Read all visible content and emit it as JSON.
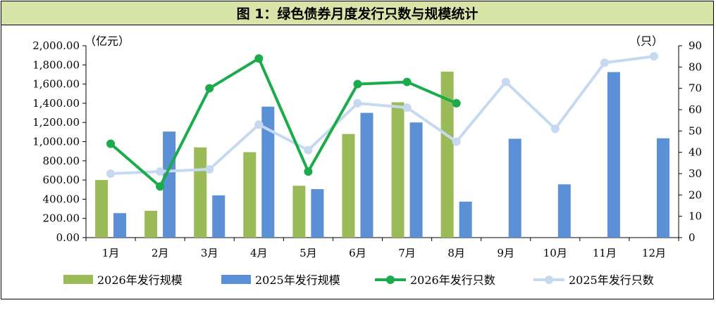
{
  "title": "图 1：绿色债券月度发行只数与规模统计",
  "chart_data": {
    "type": "bar",
    "categories": [
      "1月",
      "2月",
      "3月",
      "4月",
      "5月",
      "6月",
      "7月",
      "8月",
      "9月",
      "10月",
      "11月",
      "12月"
    ],
    "left_unit": "（亿元）",
    "right_unit": "（只）",
    "left_ticks": [
      "0.00",
      "200.00",
      "400.00",
      "600.00",
      "800.00",
      "1,000.00",
      "1,200.00",
      "1,400.00",
      "1,600.00",
      "1,800.00",
      "2,000.00"
    ],
    "right_ticks": [
      "0",
      "10",
      "20",
      "30",
      "40",
      "50",
      "60",
      "70",
      "80",
      "90"
    ],
    "ylim_left": [
      0,
      2000
    ],
    "ylim_right": [
      0,
      90
    ],
    "series": [
      {
        "name": "2026年发行规模",
        "kind": "bar",
        "axis": "left",
        "color": "#9bbb59",
        "values": [
          600,
          280,
          940,
          890,
          540,
          1080,
          1410,
          1730,
          null,
          null,
          null,
          null
        ]
      },
      {
        "name": "2025年发行规模",
        "kind": "bar",
        "axis": "left",
        "color": "#5b8fd6",
        "values": [
          255,
          1105,
          440,
          1365,
          505,
          1300,
          1200,
          375,
          1030,
          555,
          1725,
          1035
        ]
      },
      {
        "name": "2026年发行只数",
        "kind": "line",
        "axis": "right",
        "color": "#1aab4b",
        "values": [
          44,
          24,
          70,
          84,
          31,
          72,
          73,
          63,
          null,
          null,
          null,
          null
        ]
      },
      {
        "name": "2025年发行只数",
        "kind": "line",
        "axis": "right",
        "color": "#c6d9f1",
        "values": [
          30,
          31,
          32,
          53,
          41,
          63,
          61,
          45,
          73,
          51,
          82,
          85
        ]
      }
    ],
    "legend_position": "bottom",
    "grid": false
  }
}
